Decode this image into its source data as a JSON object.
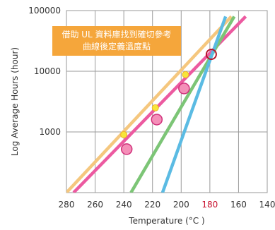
{
  "chart_data": {
    "type": "line",
    "xlabel": "Temperature (°C )",
    "ylabel": "Log Average Hours (hour)",
    "x_axis": {
      "reversed": true,
      "range": [
        280,
        140
      ],
      "ticks": [
        "280",
        "260",
        "240",
        "220",
        "200",
        "180",
        "160",
        "140"
      ],
      "highlighted_tick": "180",
      "highlight_color": "#c8102e"
    },
    "y_axis": {
      "scale": "log",
      "range": [
        100,
        100000
      ],
      "ticks": [
        "1000",
        "10000",
        "100000"
      ]
    },
    "grid": true,
    "annotation": {
      "line1": "借助 UL 資料庫找到確切參考",
      "line2": "曲線後定義溫度點"
    },
    "series": [
      {
        "color": "#f5c77e",
        "line": [
          [
            280,
            100
          ],
          [
            165,
            80000
          ]
        ],
        "points": [
          [
            240,
            900
          ],
          [
            218,
            2500
          ],
          [
            197,
            8800
          ]
        ],
        "marker": "small-yellow"
      },
      {
        "color": "#ec5aa0",
        "line": [
          [
            275,
            100
          ],
          [
            155,
            80000
          ]
        ],
        "points": [
          [
            238,
            520
          ],
          [
            217,
            1600
          ],
          [
            198,
            5200
          ]
        ],
        "marker": "large-pink"
      },
      {
        "color": "#7cc576",
        "line": [
          [
            235,
            100
          ],
          [
            163,
            80000
          ]
        ],
        "points": [],
        "marker": ""
      },
      {
        "color": "#5bbbe3",
        "line": [
          [
            213,
            100
          ],
          [
            169,
            80000
          ]
        ],
        "points": [],
        "marker": ""
      }
    ],
    "intersection": {
      "x": 179,
      "y": 19000,
      "color": "#b5152b"
    }
  }
}
